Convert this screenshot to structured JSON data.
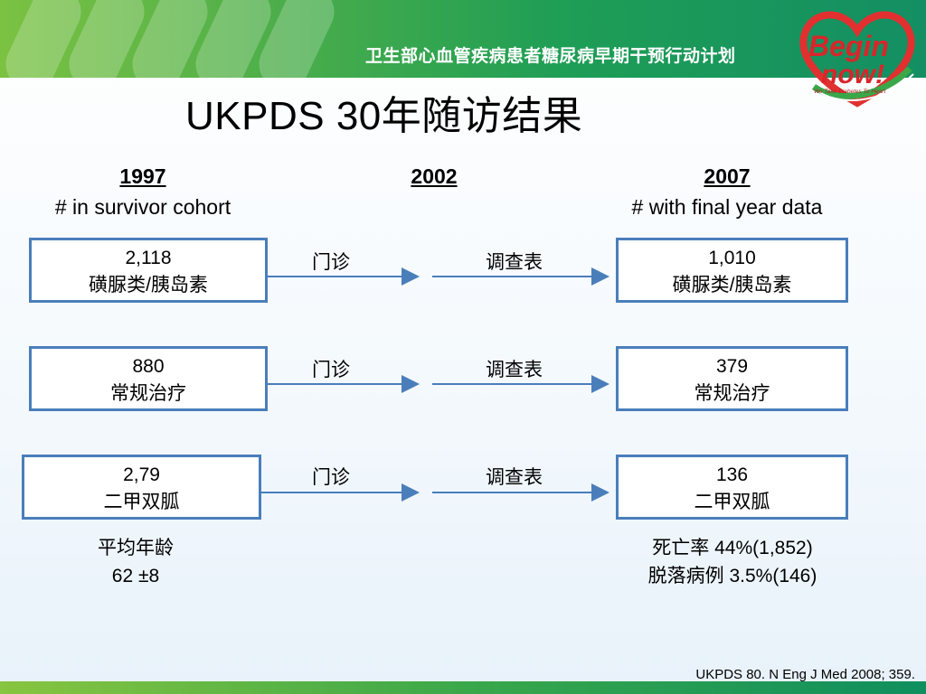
{
  "banner": {
    "slogan": "卫生部心血管疾病患者糖尿病早期干预行动计划",
    "logo_line1": "Begin",
    "logo_line2": "now!",
    "logo_tagline": "We Take Diabetes To Heart",
    "colors": {
      "start": "#7bc242",
      "end": "#138f63"
    }
  },
  "title": "UKPDS 30年随访结果",
  "columns": {
    "left": {
      "year": "1997",
      "subtitle": "# in survivor cohort"
    },
    "middle": {
      "year": "2002"
    },
    "right": {
      "year": "2007",
      "subtitle": "# with final year data"
    }
  },
  "rows": [
    {
      "left_value": "2,118",
      "left_label": "磺脲类/胰岛素",
      "step1": "门诊",
      "step2": "调查表",
      "right_value": "1,010",
      "right_label": "磺脲类/胰岛素"
    },
    {
      "left_value": "880",
      "left_label": "常规治疗",
      "step1": "门诊",
      "step2": "调查表",
      "right_value": "379",
      "right_label": "常规治疗"
    },
    {
      "left_value": "2,79",
      "left_label": "二甲双胍",
      "step1": "门诊",
      "step2": "调查表",
      "right_value": "136",
      "right_label": "二甲双胍"
    }
  ],
  "notes": {
    "left_line1": "平均年龄",
    "left_line2": "62 ±8",
    "right_line1": "死亡率 44%(1,852)",
    "right_line2": "脱落病例 3.5%(146)"
  },
  "citation": "UKPDS 80. N Eng J Med 2008; 359.",
  "colors": {
    "box_border": "#4a7ebb",
    "arrow": "#4a7ebb"
  }
}
